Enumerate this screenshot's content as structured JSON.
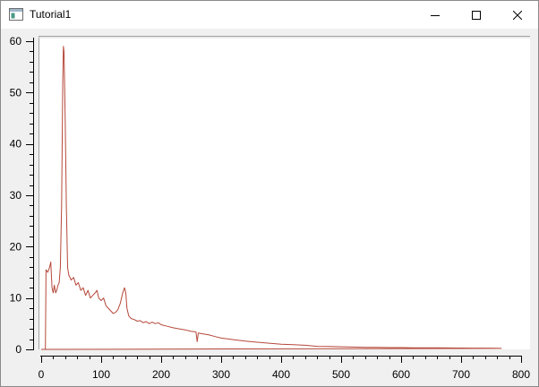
{
  "window": {
    "title": "Tutorial1"
  },
  "controls": {
    "minimize": "minimize-icon",
    "maximize": "maximize-icon",
    "close": "close-icon"
  },
  "colors": {
    "line": "#b5483a",
    "canvas": "#ffffff",
    "window_bg": "#f0f0f0"
  },
  "chart_data": {
    "type": "line",
    "title": "",
    "xlabel": "",
    "ylabel": "",
    "xlim": [
      0,
      800
    ],
    "ylim": [
      0,
      60
    ],
    "x_ticks": [
      "0",
      "100",
      "200",
      "300",
      "400",
      "500",
      "600",
      "700",
      "800"
    ],
    "y_ticks": [
      "0",
      "10",
      "20",
      "30",
      "40",
      "50",
      "60"
    ],
    "grid": false,
    "series": [
      {
        "points": [
          [
            0,
            0
          ],
          [
            7,
            0
          ],
          [
            8,
            15.5
          ],
          [
            11,
            15
          ],
          [
            14,
            16
          ],
          [
            16,
            17
          ],
          [
            18,
            12
          ],
          [
            20,
            11
          ],
          [
            22,
            12.5
          ],
          [
            24,
            11
          ],
          [
            26,
            11.5
          ],
          [
            28,
            12.5
          ],
          [
            30,
            13
          ],
          [
            32,
            16
          ],
          [
            34,
            28
          ],
          [
            36,
            52
          ],
          [
            37,
            59
          ],
          [
            38,
            58
          ],
          [
            40,
            45
          ],
          [
            42,
            28
          ],
          [
            44,
            16
          ],
          [
            46,
            14.5
          ],
          [
            50,
            13.5
          ],
          [
            54,
            14
          ],
          [
            58,
            12.5
          ],
          [
            62,
            13
          ],
          [
            66,
            11.5
          ],
          [
            70,
            12
          ],
          [
            74,
            10.5
          ],
          [
            78,
            11.5
          ],
          [
            82,
            10
          ],
          [
            86,
            10.5
          ],
          [
            90,
            11
          ],
          [
            93,
            11.5
          ],
          [
            96,
            10
          ],
          [
            100,
            9.5
          ],
          [
            104,
            10
          ],
          [
            108,
            8.5
          ],
          [
            112,
            8
          ],
          [
            116,
            7.5
          ],
          [
            120,
            7
          ],
          [
            124,
            7.2
          ],
          [
            128,
            7.8
          ],
          [
            132,
            9
          ],
          [
            136,
            11
          ],
          [
            139,
            12
          ],
          [
            141,
            11
          ],
          [
            143,
            8
          ],
          [
            146,
            6.5
          ],
          [
            150,
            6
          ],
          [
            155,
            5.8
          ],
          [
            160,
            5.5
          ],
          [
            165,
            5.6
          ],
          [
            170,
            5.2
          ],
          [
            175,
            5.4
          ],
          [
            180,
            5
          ],
          [
            185,
            5.3
          ],
          [
            190,
            5
          ],
          [
            195,
            5.2
          ],
          [
            200,
            4.8
          ],
          [
            210,
            4.5
          ],
          [
            220,
            4.2
          ],
          [
            230,
            4
          ],
          [
            240,
            3.8
          ],
          [
            250,
            3.5
          ],
          [
            258,
            3.4
          ],
          [
            260,
            1.5
          ],
          [
            262,
            3.2
          ],
          [
            270,
            3
          ],
          [
            280,
            2.8
          ],
          [
            290,
            2.5
          ],
          [
            300,
            2.2
          ],
          [
            320,
            1.9
          ],
          [
            340,
            1.6
          ],
          [
            360,
            1.4
          ],
          [
            380,
            1.2
          ],
          [
            400,
            1.0
          ],
          [
            420,
            0.9
          ],
          [
            440,
            0.8
          ],
          [
            460,
            0.6
          ],
          [
            480,
            0.55
          ],
          [
            500,
            0.5
          ],
          [
            520,
            0.45
          ],
          [
            540,
            0.4
          ],
          [
            560,
            0.4
          ],
          [
            580,
            0.35
          ],
          [
            600,
            0.35
          ],
          [
            620,
            0.3
          ],
          [
            640,
            0.3
          ],
          [
            660,
            0.3
          ],
          [
            680,
            0.28
          ],
          [
            700,
            0.27
          ],
          [
            720,
            0.25
          ],
          [
            740,
            0.25
          ],
          [
            760,
            0.22
          ],
          [
            767,
            0.2
          ]
        ]
      }
    ]
  }
}
